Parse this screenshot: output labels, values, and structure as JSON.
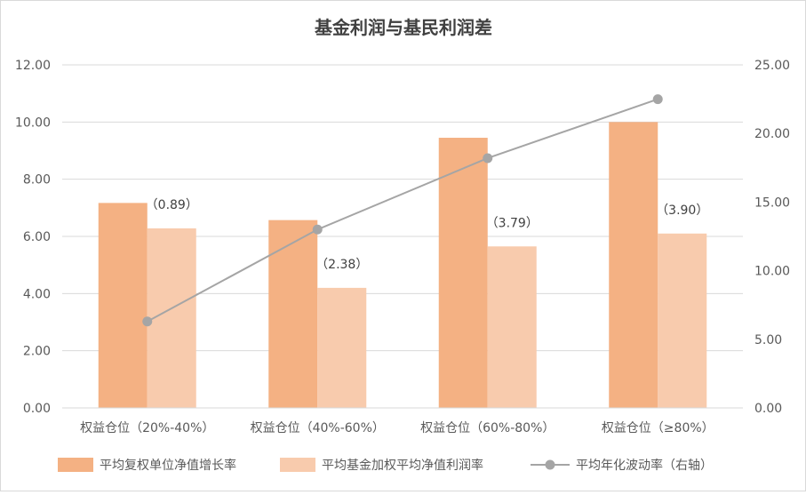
{
  "chart_data": {
    "type": "bar",
    "title": "基金利润与基民利润差",
    "categories": [
      "权益仓位（20%-40%）",
      "权益仓位（40%-60%）",
      "权益仓位（60%-80%）",
      "权益仓位（≥80%）"
    ],
    "series": [
      {
        "name": "平均复权单位净值增长率",
        "type": "bar",
        "axis": "left",
        "color": "#f4b183",
        "values": [
          7.17,
          6.57,
          9.45,
          10.0
        ]
      },
      {
        "name": "平均基金加权平均净值利润率",
        "type": "bar",
        "axis": "left",
        "color": "#f8cbad",
        "values": [
          6.28,
          4.2,
          5.65,
          6.1
        ]
      },
      {
        "name": "平均年化波动率（右轴）",
        "type": "line",
        "axis": "right",
        "color": "#a5a5a5",
        "values": [
          6.3,
          13.0,
          18.2,
          22.5
        ]
      }
    ],
    "data_labels": [
      "（0.89）",
      "（2.38）",
      "（3.79）",
      "（3.90）"
    ],
    "y_left": {
      "min": 0,
      "max": 12,
      "step": 2,
      "ticks": [
        "0.00",
        "2.00",
        "4.00",
        "6.00",
        "8.00",
        "10.00",
        "12.00"
      ]
    },
    "y_right": {
      "min": 0,
      "max": 25,
      "step": 5,
      "ticks": [
        "0.00",
        "5.00",
        "10.00",
        "15.00",
        "20.00",
        "25.00"
      ]
    },
    "grid": true,
    "legend_position": "bottom"
  }
}
